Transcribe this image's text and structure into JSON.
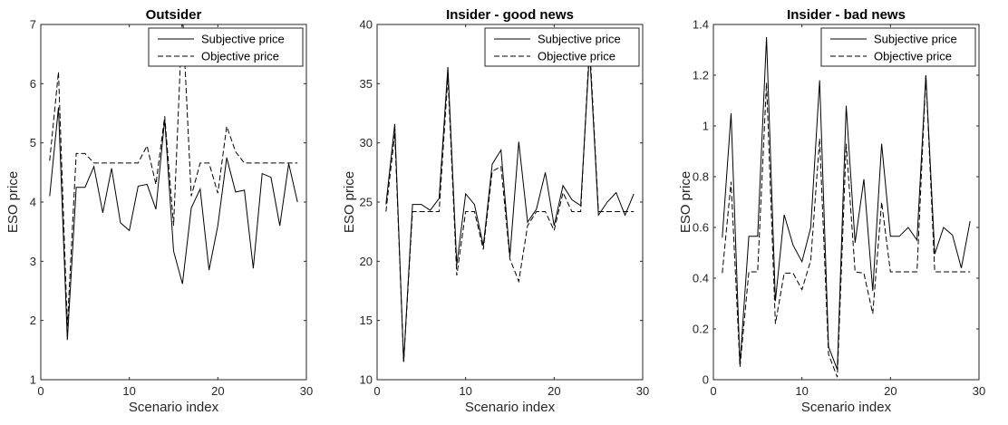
{
  "chart_data": [
    {
      "type": "line",
      "title": "Outsider",
      "xlabel": "Scenario index",
      "ylabel": "ESO price",
      "xlim": [
        0,
        30
      ],
      "ylim": [
        1,
        7
      ],
      "xticks": [
        0,
        10,
        20,
        30
      ],
      "yticks": [
        1,
        2,
        3,
        4,
        5,
        6,
        7
      ],
      "grid": false,
      "legend": "top-right",
      "x": [
        1,
        2,
        3,
        4,
        5,
        6,
        7,
        8,
        9,
        10,
        11,
        12,
        13,
        14,
        15,
        16,
        17,
        18,
        19,
        20,
        21,
        22,
        23,
        24,
        25,
        26,
        27,
        28,
        29
      ],
      "series": [
        {
          "name": "Subjective price",
          "style": "solid",
          "values": [
            4.1,
            5.6,
            1.67,
            4.25,
            4.25,
            4.6,
            3.82,
            4.57,
            3.65,
            3.52,
            4.27,
            4.3,
            3.88,
            5.4,
            3.17,
            2.62,
            3.9,
            4.22,
            2.85,
            3.6,
            4.75,
            4.17,
            4.2,
            2.88,
            4.48,
            4.42,
            3.6,
            4.65,
            4.0
          ]
        },
        {
          "name": "Objective price",
          "style": "dashed",
          "values": [
            4.7,
            6.2,
            1.9,
            4.82,
            4.82,
            4.66,
            4.66,
            4.66,
            4.66,
            4.66,
            4.66,
            4.95,
            4.3,
            5.45,
            3.6,
            7.2,
            4.1,
            4.66,
            4.66,
            4.15,
            5.28,
            4.85,
            4.66,
            4.66,
            4.66,
            4.66,
            4.66,
            4.66,
            4.66
          ]
        }
      ]
    },
    {
      "type": "line",
      "title": "Insider - good news",
      "xlabel": "Scenario index",
      "ylabel": "ESO price",
      "xlim": [
        0,
        30
      ],
      "ylim": [
        10,
        40
      ],
      "xticks": [
        0,
        10,
        20,
        30
      ],
      "yticks": [
        10,
        15,
        20,
        25,
        30,
        35,
        40
      ],
      "grid": false,
      "legend": "top-right",
      "x": [
        1,
        2,
        3,
        4,
        5,
        6,
        7,
        8,
        9,
        10,
        11,
        12,
        13,
        14,
        15,
        16,
        17,
        18,
        19,
        20,
        21,
        22,
        23,
        24,
        25,
        26,
        27,
        28,
        29
      ],
      "series": [
        {
          "name": "Subjective price",
          "style": "solid",
          "values": [
            24.8,
            31.6,
            11.5,
            24.8,
            24.8,
            24.3,
            25.3,
            36.4,
            19.7,
            25.7,
            24.8,
            21.3,
            28.2,
            29.4,
            20.4,
            30.1,
            23.3,
            24.4,
            27.5,
            23.0,
            26.4,
            25.2,
            24.7,
            37.8,
            23.9,
            25.0,
            25.8,
            23.9,
            25.7
          ]
        },
        {
          "name": "Objective price",
          "style": "dashed",
          "values": [
            24.2,
            30.8,
            11.5,
            24.2,
            24.2,
            24.2,
            24.2,
            35.6,
            18.8,
            24.2,
            24.2,
            21.0,
            27.6,
            28.0,
            20.2,
            18.3,
            23.0,
            24.2,
            24.2,
            22.6,
            25.8,
            24.2,
            24.2,
            38.5,
            24.2,
            24.2,
            24.2,
            24.2,
            24.2
          ]
        }
      ]
    },
    {
      "type": "line",
      "title": "Insider - bad news",
      "xlabel": "Scenario index",
      "ylabel": "ESO price",
      "xlim": [
        0,
        30
      ],
      "ylim": [
        0,
        1.4
      ],
      "xticks": [
        0,
        10,
        20,
        30
      ],
      "yticks": [
        0,
        0.2,
        0.4,
        0.6,
        0.8,
        1,
        1.2,
        1.4
      ],
      "grid": false,
      "legend": "top-right",
      "x": [
        1,
        2,
        3,
        4,
        5,
        6,
        7,
        8,
        9,
        10,
        11,
        12,
        13,
        14,
        15,
        16,
        17,
        18,
        19,
        20,
        21,
        22,
        23,
        24,
        25,
        26,
        27,
        28,
        29
      ],
      "series": [
        {
          "name": "Subjective price",
          "style": "solid",
          "values": [
            0.56,
            1.05,
            0.06,
            0.565,
            0.565,
            1.35,
            0.31,
            0.65,
            0.53,
            0.465,
            0.6,
            1.18,
            0.13,
            0.04,
            1.08,
            0.54,
            0.79,
            0.35,
            0.93,
            0.565,
            0.565,
            0.6,
            0.55,
            1.2,
            0.495,
            0.6,
            0.57,
            0.44,
            0.625
          ]
        },
        {
          "name": "Objective price",
          "style": "dashed",
          "values": [
            0.42,
            0.78,
            0.05,
            0.425,
            0.425,
            1.17,
            0.22,
            0.42,
            0.42,
            0.355,
            0.47,
            0.95,
            0.1,
            0.01,
            0.93,
            0.425,
            0.42,
            0.26,
            0.7,
            0.425,
            0.425,
            0.425,
            0.425,
            1.2,
            0.425,
            0.425,
            0.425,
            0.425,
            0.425
          ]
        }
      ]
    }
  ]
}
